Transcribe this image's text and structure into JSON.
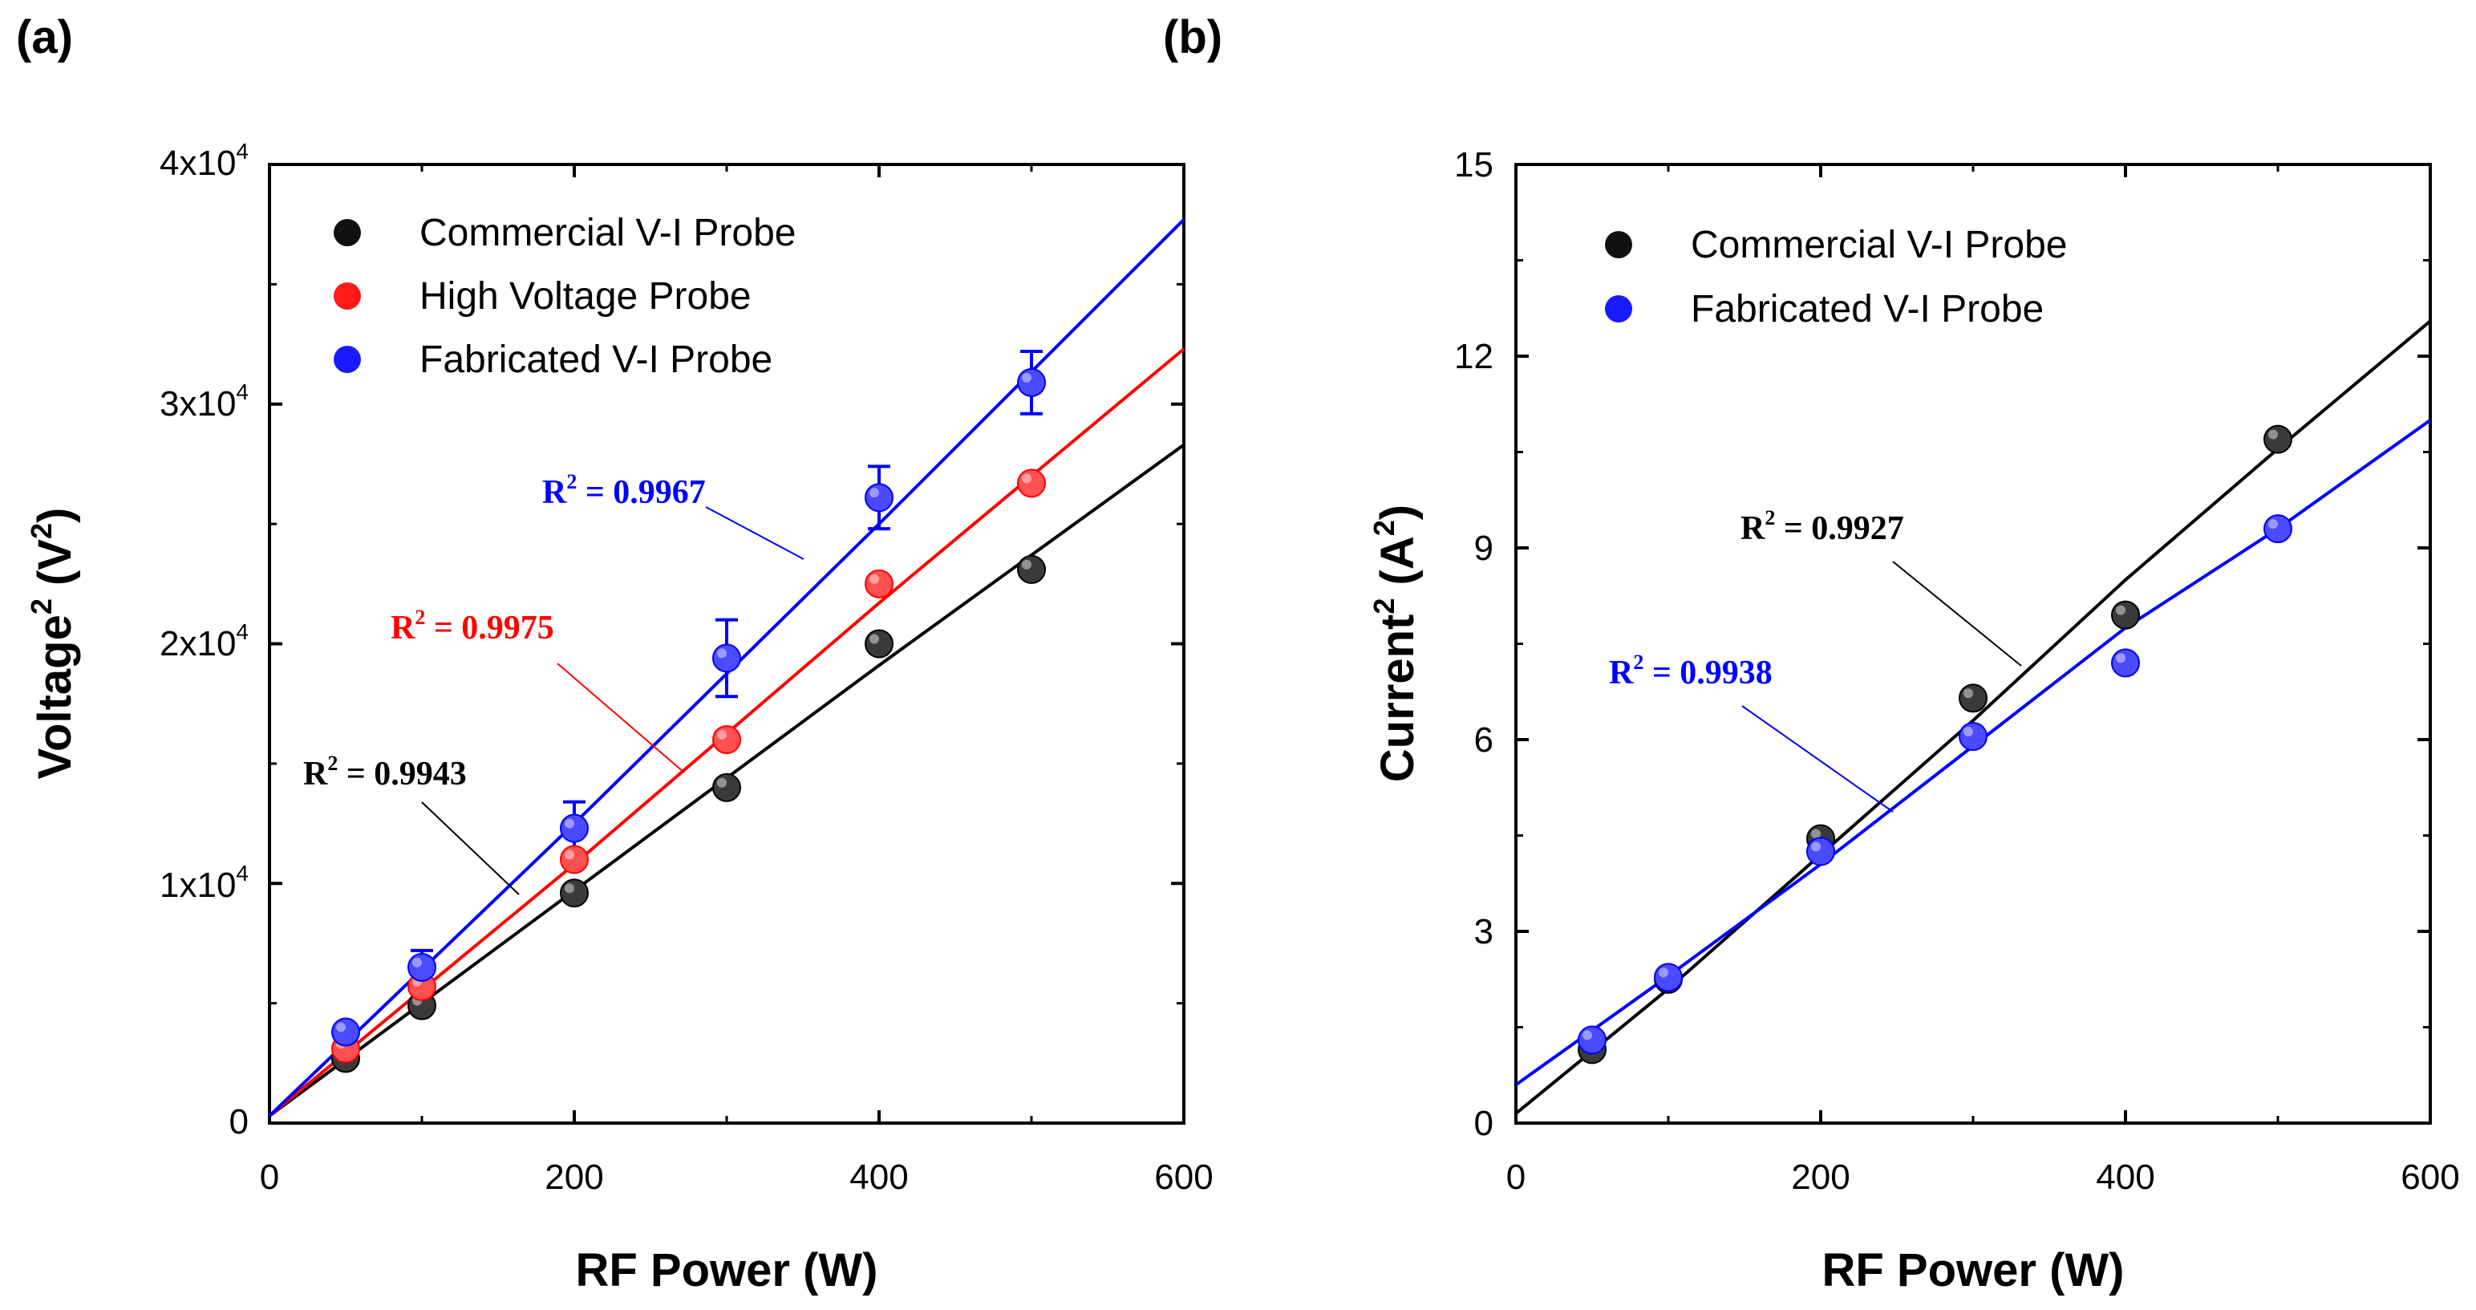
{
  "panels": [
    {
      "panel_label": "(a)",
      "xlabel": "RF Power (W)",
      "ylabel_main": "Voltage",
      "ylabel_sup": "2",
      "ylabel_unit_open": " (V",
      "ylabel_unit_sup": "2",
      "ylabel_unit_close": ")",
      "xlim": [
        0,
        600
      ],
      "ylim": [
        0,
        40000
      ],
      "xticks": [
        {
          "value": 0,
          "label": "0"
        },
        {
          "value": 200,
          "label": "200"
        },
        {
          "value": 400,
          "label": "400"
        },
        {
          "value": 600,
          "label": "600"
        }
      ],
      "yticks": [
        {
          "value": 0,
          "label": "0",
          "mant": "",
          "exp": ""
        },
        {
          "value": 10000,
          "label": "",
          "mant": "1x10",
          "exp": "4"
        },
        {
          "value": 20000,
          "label": "",
          "mant": "2x10",
          "exp": "4"
        },
        {
          "value": 30000,
          "label": "",
          "mant": "3x10",
          "exp": "4"
        },
        {
          "value": 40000,
          "label": "",
          "mant": "4x10",
          "exp": "4"
        }
      ]
    },
    {
      "panel_label": "(b)",
      "xlabel": "RF Power (W)",
      "ylabel_main": "Current",
      "ylabel_sup": "2",
      "ylabel_unit_open": " (A",
      "ylabel_unit_sup": "2",
      "ylabel_unit_close": ")",
      "xlim": [
        0,
        600
      ],
      "ylim": [
        0,
        15
      ],
      "xticks": [
        {
          "value": 0,
          "label": "0"
        },
        {
          "value": 200,
          "label": "200"
        },
        {
          "value": 400,
          "label": "400"
        },
        {
          "value": 600,
          "label": "600"
        }
      ],
      "yticks": [
        {
          "value": 0,
          "label": "0",
          "mant": "",
          "exp": ""
        },
        {
          "value": 3,
          "label": "3",
          "mant": "",
          "exp": ""
        },
        {
          "value": 6,
          "label": "6",
          "mant": "",
          "exp": ""
        },
        {
          "value": 9,
          "label": "9",
          "mant": "",
          "exp": ""
        },
        {
          "value": 12,
          "label": "12",
          "mant": "",
          "exp": ""
        },
        {
          "value": 15,
          "label": "15",
          "mant": "",
          "exp": ""
        }
      ]
    }
  ],
  "chart_data": [
    {
      "type": "scatter",
      "xlabel": "RF Power (W)",
      "ylabel": "Voltage2 (V2)",
      "xlim": [
        0,
        600
      ],
      "ylim": [
        0,
        40000
      ],
      "grid": false,
      "legend_position": "top-left",
      "series": [
        {
          "name": "Commercial V-I Probe",
          "color": "#000000",
          "x": [
            50,
            100,
            200,
            300,
            400,
            500
          ],
          "y": [
            2700,
            4900,
            9600,
            14000,
            20000,
            23100
          ],
          "err": [
            0,
            0,
            0,
            0,
            0,
            0
          ],
          "fit": {
            "points": [
              [
                0,
                300
              ],
              [
                200,
                9700
              ],
              [
                400,
                19100
              ],
              [
                600,
                28300
              ]
            ]
          },
          "r2_base": "R",
          "r2_exp": "2",
          "r2_text": " = 0.9943"
        },
        {
          "name": "High Voltage Probe",
          "color": "#ff0000",
          "x": [
            50,
            100,
            200,
            300,
            400,
            500
          ],
          "y": [
            3100,
            5700,
            11000,
            16000,
            22500,
            26700
          ],
          "err": [
            0,
            0,
            0,
            0,
            0,
            0
          ],
          "fit": {
            "points": [
              [
                0,
                300
              ],
              [
                200,
                10800
              ],
              [
                400,
                21700
              ],
              [
                600,
                32300
              ]
            ]
          },
          "r2_base": "R",
          "r2_exp": "2",
          "r2_text": " = 0.9975"
        },
        {
          "name": "Fabricated V-I Probe",
          "color": "#0000ff",
          "x": [
            50,
            100,
            200,
            300,
            400,
            500
          ],
          "y": [
            3800,
            6500,
            12300,
            19400,
            26100,
            30900
          ],
          "err": [
            0,
            700,
            1100,
            1600,
            1300,
            1300
          ],
          "fit": {
            "points": [
              [
                0,
                300
              ],
              [
                200,
                12500
              ],
              [
                400,
                25000
              ],
              [
                600,
                37700
              ]
            ]
          },
          "r2_base": "R",
          "r2_exp": "2",
          "r2_text": " = 0.9967"
        }
      ]
    },
    {
      "type": "scatter",
      "xlabel": "RF Power (W)",
      "ylabel": "Current2 (A2)",
      "xlim": [
        0,
        600
      ],
      "ylim": [
        0,
        15
      ],
      "grid": false,
      "legend_position": "top-left",
      "series": [
        {
          "name": "Commercial V-I Probe",
          "color": "#000000",
          "x": [
            50,
            100,
            200,
            300,
            400,
            500
          ],
          "y": [
            1.15,
            2.25,
            4.45,
            6.65,
            7.95,
            10.7
          ],
          "err": [
            0,
            0,
            0,
            0,
            0,
            0
          ],
          "fit": {
            "points": [
              [
                0,
                0.15
              ],
              [
                100,
                2.1
              ],
              [
                200,
                4.2
              ],
              [
                300,
                6.3
              ],
              [
                400,
                8.5
              ],
              [
                500,
                10.55
              ],
              [
                600,
                12.55
              ]
            ]
          },
          "r2_base": "R",
          "r2_exp": "2",
          "r2_text": " = 0.9927"
        },
        {
          "name": "Fabricated V-I Probe",
          "color": "#0000ff",
          "x": [
            50,
            100,
            200,
            300,
            400,
            500
          ],
          "y": [
            1.3,
            2.28,
            4.25,
            6.05,
            7.2,
            9.3
          ],
          "err": [
            0,
            0,
            0,
            0,
            0,
            0
          ],
          "fit": {
            "points": [
              [
                0,
                0.6
              ],
              [
                100,
                2.3
              ],
              [
                200,
                4.05
              ],
              [
                300,
                5.9
              ],
              [
                400,
                7.75
              ],
              [
                500,
                9.3
              ],
              [
                600,
                11.0
              ]
            ]
          },
          "r2_base": "R",
          "r2_exp": "2",
          "r2_text": " = 0.9938"
        }
      ]
    }
  ]
}
